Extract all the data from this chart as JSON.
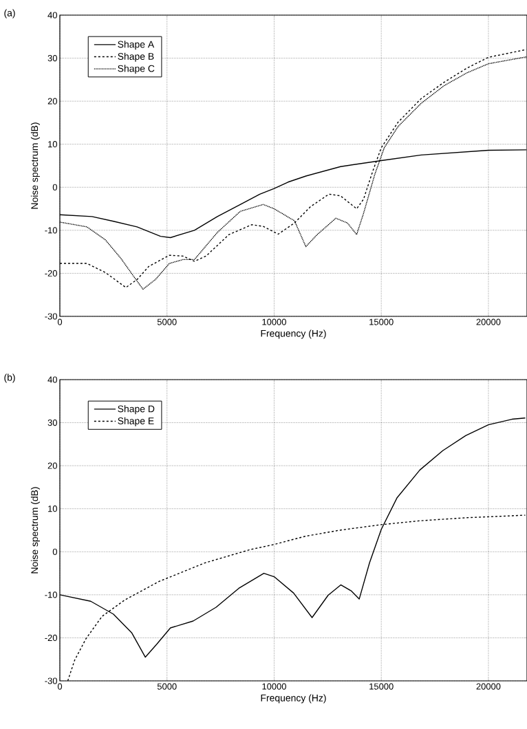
{
  "chart_data": [
    {
      "type": "line",
      "title": "(a)",
      "xlabel": "Frequency (Hz)",
      "ylabel": "Noise spectrum (dB)",
      "xlim": [
        0,
        21800
      ],
      "ylim": [
        -30,
        40
      ],
      "xticks": [
        0,
        5000,
        10000,
        15000,
        20000
      ],
      "yticks": [
        -30,
        -20,
        -10,
        0,
        10,
        20,
        30,
        40
      ],
      "grid": true,
      "legend": "top left",
      "series": [
        {
          "name": "Shape A",
          "color": "#000000",
          "line_style": "solid",
          "x": [
            0,
            1500,
            2500,
            3600,
            4700,
            5160,
            6280,
            7350,
            8420,
            9330,
            10000,
            10650,
            11480,
            13100,
            15000,
            16860,
            20000,
            21770
          ],
          "values": [
            -6.4,
            -6.8,
            -7.9,
            -9.2,
            -11.4,
            -11.7,
            -10,
            -6.8,
            -4,
            -1.6,
            -0.3,
            1.2,
            2.6,
            4.8,
            6.2,
            7.5,
            8.6,
            8.7
          ]
        },
        {
          "name": "Shape B",
          "color": "#000000",
          "line_style": "dashed",
          "x": [
            0,
            1260,
            2120,
            3080,
            3610,
            4150,
            5110,
            5750,
            6280,
            6820,
            7890,
            8960,
            9490,
            10190,
            10950,
            11700,
            12560,
            13100,
            13850,
            14170,
            14600,
            15000,
            15780,
            16860,
            17930,
            19000,
            20000,
            21770
          ],
          "values": [
            -17.7,
            -17.7,
            -19.8,
            -23.3,
            -21.4,
            -18.4,
            -15.8,
            -16,
            -17.2,
            -16,
            -11,
            -8.7,
            -9.1,
            -10.9,
            -8.3,
            -4.5,
            -1.6,
            -2,
            -5,
            -2.8,
            3.7,
            9.2,
            15.1,
            20.6,
            24.4,
            27.7,
            30.2,
            32
          ]
        },
        {
          "name": "Shape C",
          "color": "#000000",
          "line_style": "dotted",
          "x": [
            0,
            1260,
            2120,
            2860,
            3400,
            3880,
            4470,
            5110,
            5750,
            6280,
            7350,
            8420,
            9490,
            10000,
            10950,
            11480,
            12010,
            12880,
            13420,
            13850,
            14170,
            14710,
            15140,
            15780,
            16860,
            17930,
            19000,
            20000,
            21770
          ],
          "values": [
            -8.1,
            -9.2,
            -12.2,
            -16.6,
            -20.4,
            -23.7,
            -21.4,
            -17.7,
            -16.8,
            -16.8,
            -10.5,
            -5.6,
            -4,
            -5,
            -7.8,
            -13.8,
            -11,
            -7.2,
            -8.3,
            -11,
            -6.1,
            3.2,
            9.2,
            14.1,
            19.5,
            23.6,
            26.6,
            28.7,
            30.3
          ]
        }
      ]
    },
    {
      "type": "line",
      "title": "(b)",
      "xlabel": "Frequency (Hz)",
      "ylabel": "Noise spectrum (dB)",
      "xlim": [
        0,
        21800
      ],
      "ylim": [
        -30,
        40
      ],
      "xticks": [
        0,
        5000,
        10000,
        15000,
        20000
      ],
      "yticks": [
        -30,
        -20,
        -10,
        0,
        10,
        20,
        30,
        40
      ],
      "grid": true,
      "legend": "top left",
      "series": [
        {
          "name": "Shape D",
          "color": "#000000",
          "line_style": "solid",
          "x": [
            0,
            1440,
            2500,
            3350,
            3990,
            4520,
            5160,
            6220,
            7290,
            8350,
            9520,
            10000,
            10910,
            11770,
            12520,
            13110,
            13600,
            13970,
            14450,
            15000,
            15730,
            16800,
            17870,
            18940,
            20000,
            21100,
            21720
          ],
          "values": [
            -10,
            -11.5,
            -14.5,
            -18.8,
            -24.5,
            -21.5,
            -17.7,
            -16.1,
            -12.9,
            -8.5,
            -5,
            -5.8,
            -9.6,
            -15.3,
            -10.1,
            -7.7,
            -9.1,
            -11,
            -2.6,
            5.2,
            12.5,
            19,
            23.5,
            27,
            29.5,
            30.8,
            31.1
          ]
        },
        {
          "name": "Shape E",
          "color": "#000000",
          "line_style": "dashed",
          "x": [
            370,
            690,
            1220,
            1970,
            3030,
            4630,
            6760,
            8880,
            10000,
            11450,
            13050,
            15000,
            16800,
            18940,
            21720
          ],
          "values": [
            -30,
            -25.2,
            -20.2,
            -15,
            -11.2,
            -6.9,
            -2.6,
            0.5,
            1.7,
            3.6,
            5,
            6.3,
            7.2,
            7.9,
            8.5
          ]
        }
      ]
    }
  ]
}
